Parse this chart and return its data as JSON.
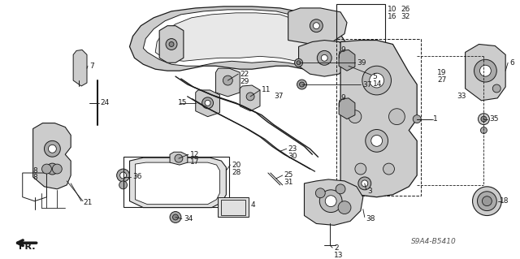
{
  "bg_color": "#ffffff",
  "diagram_code": "S9A4-B5410",
  "fig_width": 6.4,
  "fig_height": 3.19,
  "dpi": 100,
  "lc": "#1a1a1a",
  "gray1": "#cccccc",
  "gray2": "#aaaaaa",
  "gray3": "#888888",
  "font_size": 6.5,
  "fr_label": "FR."
}
